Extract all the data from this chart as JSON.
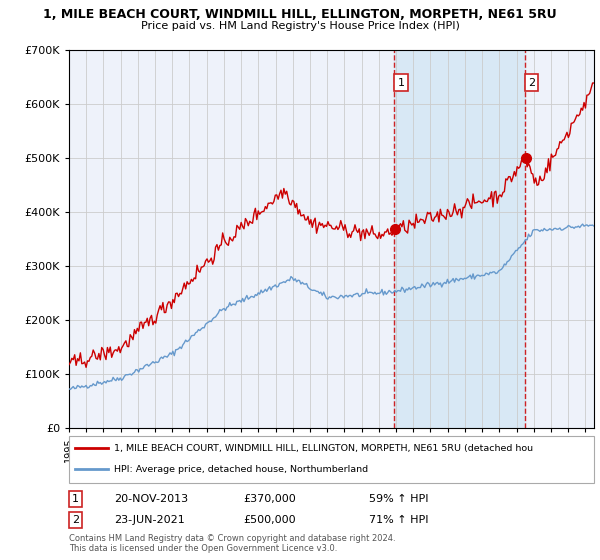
{
  "title_line1": "1, MILE BEACH COURT, WINDMILL HILL, ELLINGTON, MORPETH, NE61 5RU",
  "title_line2": "Price paid vs. HM Land Registry's House Price Index (HPI)",
  "legend_red": "1, MILE BEACH COURT, WINDMILL HILL, ELLINGTON, MORPETH, NE61 5RU (detached hou",
  "legend_blue": "HPI: Average price, detached house, Northumberland",
  "annotation1_date": "20-NOV-2013",
  "annotation1_price": "£370,000",
  "annotation1_hpi": "59% ↑ HPI",
  "annotation2_date": "23-JUN-2021",
  "annotation2_price": "£500,000",
  "annotation2_hpi": "71% ↑ HPI",
  "footer": "Contains HM Land Registry data © Crown copyright and database right 2024.\nThis data is licensed under the Open Government Licence v3.0.",
  "red_color": "#cc0000",
  "blue_color": "#6699cc",
  "bg_color": "#ffffff",
  "plot_bg_color": "#eef2fa",
  "shaded_bg_color": "#d8e8f5",
  "grid_color": "#cccccc",
  "ylim": [
    0,
    700000
  ],
  "yticks": [
    0,
    100000,
    200000,
    300000,
    400000,
    500000,
    600000,
    700000
  ],
  "sale1_x": 2013.9,
  "sale1_y": 370000,
  "sale2_x": 2021.5,
  "sale2_y": 500000,
  "vline1_x": 2013.9,
  "vline2_x": 2021.5,
  "xmin": 1995,
  "xmax": 2025.5
}
